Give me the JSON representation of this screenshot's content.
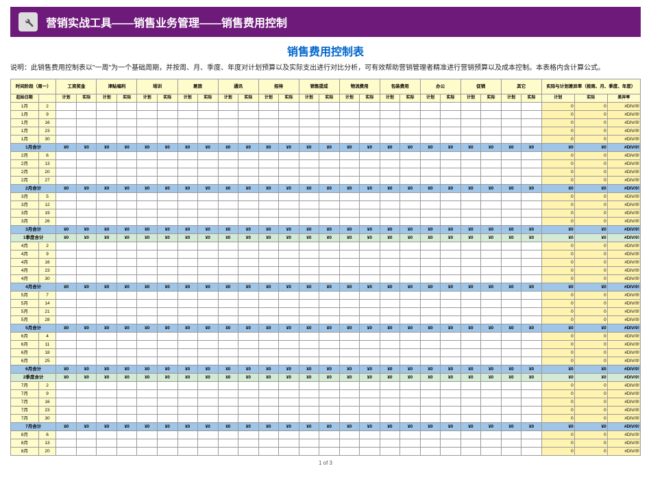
{
  "header": {
    "title": "营销实战工具——销售业务管理——销售费用控制"
  },
  "main_title": "销售费用控制表",
  "description": "说明：此销售费用控制表以\"一周\"为一个基础周期，并按周、月、季度、年度对计划预算以及实际支出进行对比分析，可有效帮助营销管理者精准进行营销预算以及成本控制。本表格内含计算公式。",
  "footer": "1 of 3",
  "colors": {
    "header_bg": "#6e1a7a",
    "yellow_hdr": "#fffccc",
    "yellow_var": "#fff3b0",
    "blue_month": "#9fc5e8",
    "green_quarter": "#d5ead5",
    "title_blue": "#0066cc"
  },
  "table": {
    "time_header": "时间阶段（周一）",
    "start_date_label": "起始日期",
    "variance_header": "实际与计划差异率（按周、月、季度、年度）",
    "categories": [
      "工资奖金",
      "津贴福利",
      "培训",
      "差旅",
      "通讯",
      "招待",
      "销售提成",
      "物流费用",
      "包装费用",
      "办公",
      "促销",
      "其它"
    ],
    "sub_headers": [
      "计划",
      "实际"
    ],
    "variance_cols": [
      "计划",
      "实际",
      "差异率"
    ],
    "sum_value": "¥0",
    "zero_value": "0",
    "div_value": "#DIV/0!",
    "rows": [
      {
        "type": "week",
        "month": "1月",
        "day": "2"
      },
      {
        "type": "week",
        "month": "1月",
        "day": "9"
      },
      {
        "type": "week",
        "month": "1月",
        "day": "16"
      },
      {
        "type": "week",
        "month": "1月",
        "day": "23"
      },
      {
        "type": "week",
        "month": "1月",
        "day": "30"
      },
      {
        "type": "month",
        "label": "1月合计"
      },
      {
        "type": "week",
        "month": "2月",
        "day": "6"
      },
      {
        "type": "week",
        "month": "2月",
        "day": "13"
      },
      {
        "type": "week",
        "month": "2月",
        "day": "20"
      },
      {
        "type": "week",
        "month": "2月",
        "day": "27"
      },
      {
        "type": "month",
        "label": "2月合计"
      },
      {
        "type": "week",
        "month": "3月",
        "day": "5"
      },
      {
        "type": "week",
        "month": "3月",
        "day": "12"
      },
      {
        "type": "week",
        "month": "3月",
        "day": "19"
      },
      {
        "type": "week",
        "month": "3月",
        "day": "26"
      },
      {
        "type": "month",
        "label": "3月合计"
      },
      {
        "type": "quarter",
        "label": "1季度合计"
      },
      {
        "type": "week",
        "month": "4月",
        "day": "2"
      },
      {
        "type": "week",
        "month": "4月",
        "day": "9"
      },
      {
        "type": "week",
        "month": "4月",
        "day": "16"
      },
      {
        "type": "week",
        "month": "4月",
        "day": "23"
      },
      {
        "type": "week",
        "month": "4月",
        "day": "30"
      },
      {
        "type": "month",
        "label": "4月合计"
      },
      {
        "type": "week",
        "month": "5月",
        "day": "7"
      },
      {
        "type": "week",
        "month": "5月",
        "day": "14"
      },
      {
        "type": "week",
        "month": "5月",
        "day": "21"
      },
      {
        "type": "week",
        "month": "5月",
        "day": "28"
      },
      {
        "type": "month",
        "label": "5月合计"
      },
      {
        "type": "week",
        "month": "6月",
        "day": "4"
      },
      {
        "type": "week",
        "month": "6月",
        "day": "11"
      },
      {
        "type": "week",
        "month": "6月",
        "day": "18"
      },
      {
        "type": "week",
        "month": "6月",
        "day": "25"
      },
      {
        "type": "month",
        "label": "6月合计"
      },
      {
        "type": "quarter",
        "label": "2季度合计"
      },
      {
        "type": "week",
        "month": "7月",
        "day": "2"
      },
      {
        "type": "week",
        "month": "7月",
        "day": "9"
      },
      {
        "type": "week",
        "month": "7月",
        "day": "16"
      },
      {
        "type": "week",
        "month": "7月",
        "day": "23"
      },
      {
        "type": "week",
        "month": "7月",
        "day": "30"
      },
      {
        "type": "month",
        "label": "7月合计"
      },
      {
        "type": "week",
        "month": "8月",
        "day": "6"
      },
      {
        "type": "week",
        "month": "8月",
        "day": "13"
      },
      {
        "type": "week",
        "month": "8月",
        "day": "20"
      }
    ]
  }
}
